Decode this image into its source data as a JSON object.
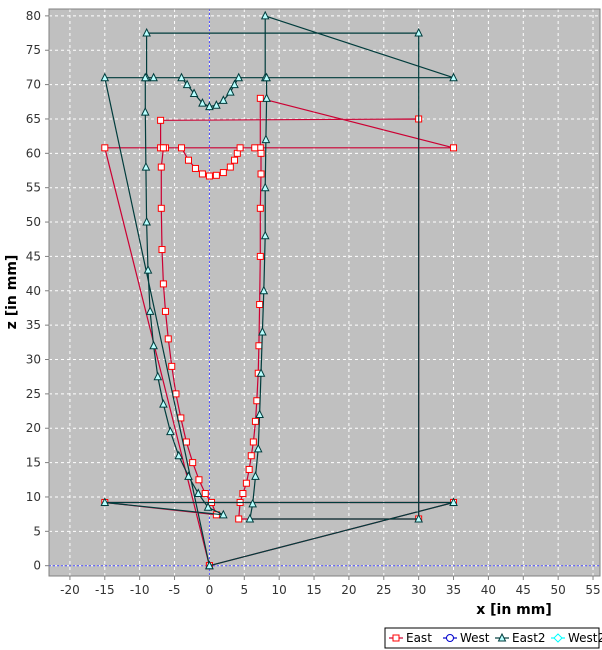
{
  "chart_data": {
    "type": "line",
    "title": "",
    "xlabel": "x [in mm]",
    "ylabel": "z [in mm]",
    "xlim": [
      -23,
      56
    ],
    "ylim": [
      -1.5,
      81
    ],
    "x_ticks": [
      -20,
      -15,
      -10,
      -5,
      0,
      5,
      10,
      15,
      20,
      25,
      30,
      35,
      40,
      45,
      50,
      55
    ],
    "y_ticks": [
      0,
      5,
      10,
      15,
      20,
      25,
      30,
      35,
      40,
      45,
      50,
      55,
      60,
      65,
      70,
      75,
      80
    ],
    "grid": true,
    "legend_position": "bottom-right",
    "colors": {
      "plot_background": "#c0c0c0",
      "grid": "#ffffff",
      "zero_lines": "#4c4cff",
      "East": "#cc0033",
      "East_marker": "#ff0000",
      "West": "#0000cc",
      "East2": "#003c3c",
      "West2": "#00ffff"
    },
    "series": [
      {
        "name": "East",
        "marker": "square",
        "points": [
          [
            0,
            0
          ],
          [
            -15,
            60.8
          ],
          [
            35,
            60.8
          ],
          [
            7.3,
            68
          ],
          [
            7.3,
            60.8
          ],
          [
            6.5,
            60.8
          ],
          [
            7.4,
            60
          ],
          [
            7.4,
            57
          ],
          [
            7.3,
            52
          ],
          [
            7.3,
            45
          ],
          [
            7.2,
            38
          ],
          [
            7.1,
            32
          ],
          [
            7.0,
            28
          ],
          [
            6.8,
            24
          ],
          [
            6.6,
            21
          ],
          [
            6.3,
            18
          ],
          [
            6.0,
            16
          ],
          [
            5.7,
            14
          ],
          [
            5.3,
            12
          ],
          [
            4.8,
            10.5
          ],
          [
            4.4,
            9.2
          ],
          [
            4.2,
            6.8
          ],
          [
            30,
            6.8
          ],
          [
            30,
            65
          ],
          [
            -7,
            64.8
          ],
          [
            -7,
            60.8
          ],
          [
            -6.3,
            60.8
          ],
          [
            -4,
            60.8
          ],
          [
            -3,
            59
          ],
          [
            -2,
            57.8
          ],
          [
            -1,
            57
          ],
          [
            0,
            56.7
          ],
          [
            1,
            56.8
          ],
          [
            2,
            57.2
          ],
          [
            3,
            58
          ],
          [
            3.6,
            59
          ],
          [
            4,
            60
          ],
          [
            4.4,
            60.8
          ],
          [
            -6.6,
            60.8
          ],
          [
            -6.9,
            58
          ],
          [
            -6.9,
            52
          ],
          [
            -6.8,
            46
          ],
          [
            -6.6,
            41
          ],
          [
            -6.3,
            37
          ],
          [
            -5.9,
            33
          ],
          [
            -5.4,
            29
          ],
          [
            -4.8,
            25
          ],
          [
            -4.1,
            21.5
          ],
          [
            -3.3,
            18
          ],
          [
            -2.4,
            15
          ],
          [
            -1.5,
            12.5
          ],
          [
            -0.6,
            10.5
          ],
          [
            0.3,
            9.2
          ],
          [
            1,
            7.4
          ],
          [
            -15,
            9.2
          ],
          [
            35,
            9.2
          ],
          [
            0,
            0
          ]
        ]
      },
      {
        "name": "West",
        "marker": "circle",
        "points": []
      },
      {
        "name": "East2",
        "marker": "triangle",
        "points": [
          [
            0,
            0
          ],
          [
            -15,
            71
          ],
          [
            35,
            71
          ],
          [
            8,
            80
          ],
          [
            8,
            71
          ],
          [
            8.2,
            71
          ],
          [
            8.2,
            68
          ],
          [
            8.1,
            62
          ],
          [
            8.0,
            55
          ],
          [
            8.0,
            48
          ],
          [
            7.8,
            40
          ],
          [
            7.6,
            34
          ],
          [
            7.4,
            28
          ],
          [
            7.2,
            22
          ],
          [
            7.0,
            17
          ],
          [
            6.6,
            13
          ],
          [
            6.2,
            9
          ],
          [
            5.8,
            6.8
          ],
          [
            30,
            6.8
          ],
          [
            30,
            77.5
          ],
          [
            -9,
            77.5
          ],
          [
            -9,
            71
          ],
          [
            -8,
            71
          ],
          [
            -4,
            71
          ],
          [
            -3.2,
            70
          ],
          [
            -2.2,
            68.7
          ],
          [
            -1,
            67.3
          ],
          [
            0,
            66.8
          ],
          [
            1,
            67
          ],
          [
            2,
            67.7
          ],
          [
            3,
            68.9
          ],
          [
            3.6,
            70
          ],
          [
            4.2,
            71
          ],
          [
            -9.2,
            71
          ],
          [
            -9.2,
            66
          ],
          [
            -9.1,
            58
          ],
          [
            -9.0,
            50
          ],
          [
            -8.8,
            43
          ],
          [
            -8.5,
            37
          ],
          [
            -8.0,
            32
          ],
          [
            -7.4,
            27.5
          ],
          [
            -6.6,
            23.5
          ],
          [
            -5.6,
            19.5
          ],
          [
            -4.4,
            16
          ],
          [
            -3,
            13
          ],
          [
            -1.6,
            10.5
          ],
          [
            -0.2,
            8.5
          ],
          [
            2,
            7.4
          ],
          [
            -15,
            9.2
          ],
          [
            35,
            9.2
          ],
          [
            0,
            0
          ]
        ]
      },
      {
        "name": "West2",
        "marker": "diamond",
        "points": []
      }
    ]
  }
}
